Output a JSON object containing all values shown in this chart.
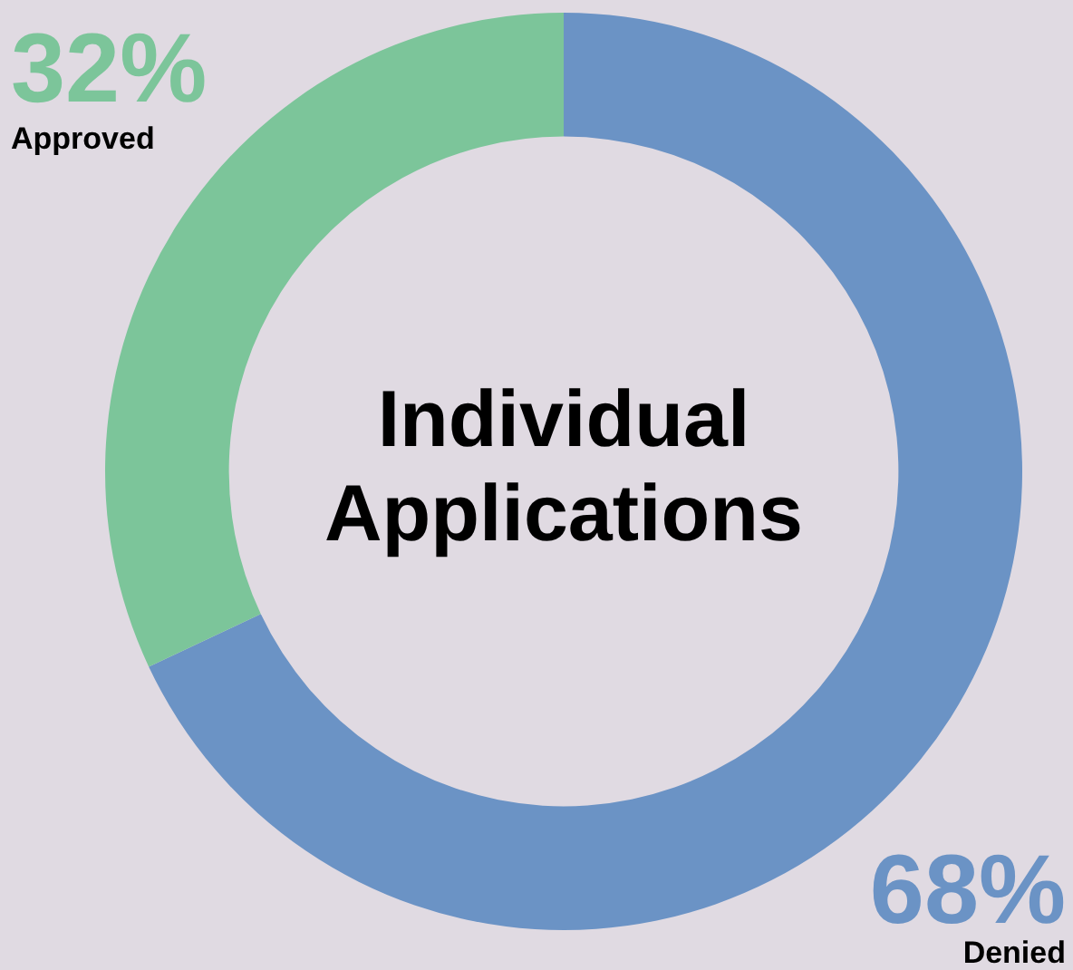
{
  "chart_data": {
    "type": "donut",
    "title": "Individual Applications",
    "categories": [
      "Denied",
      "Approved"
    ],
    "values": [
      68,
      32
    ],
    "colors": [
      "#6b93c5",
      "#7cc59a"
    ],
    "value_labels": [
      "68%",
      "32%"
    ],
    "legend": false
  }
}
